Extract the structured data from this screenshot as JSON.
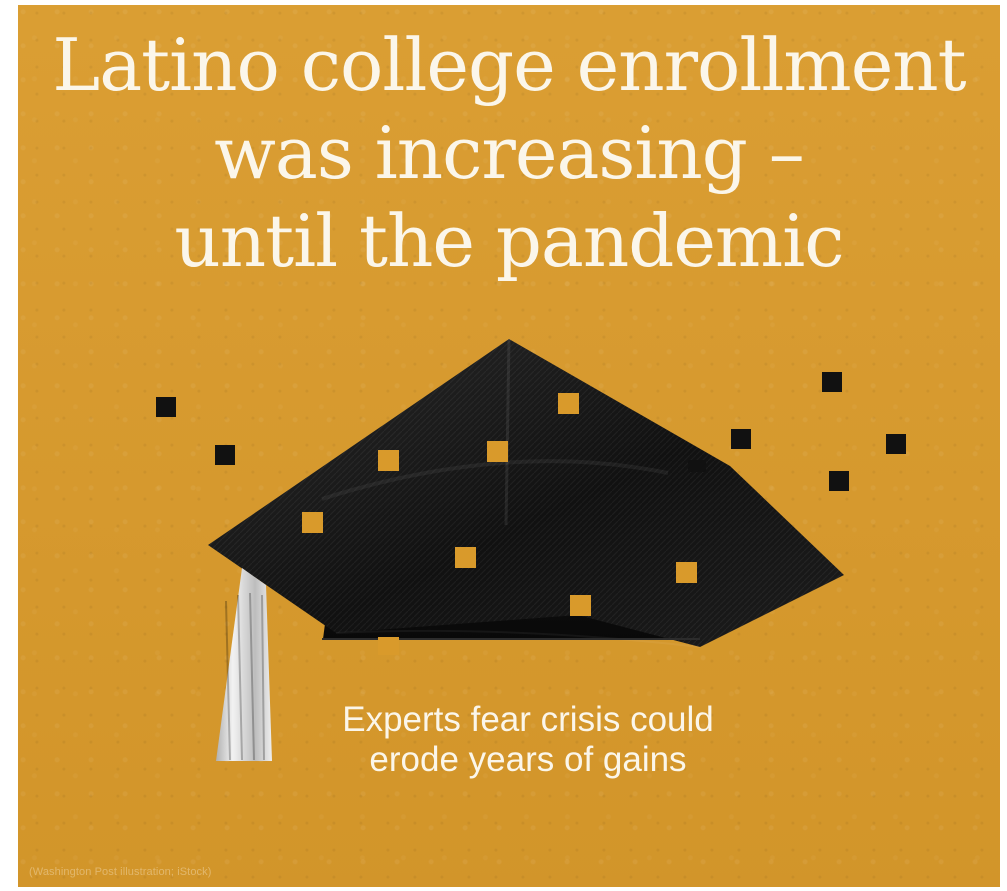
{
  "headline": {
    "line1": "Latino college enrollment",
    "line2": "was increasing –",
    "line3": "until the pandemic"
  },
  "subhead": {
    "line1": "Experts fear crisis could",
    "line2": "erode years of gains"
  },
  "credit": "(Washington Post illustration; iStock)",
  "colors": {
    "background": "#d99a2b",
    "text": "#fbf6ea",
    "cap": "#151515"
  },
  "icons": {
    "main": "graduation-cap-icon"
  }
}
